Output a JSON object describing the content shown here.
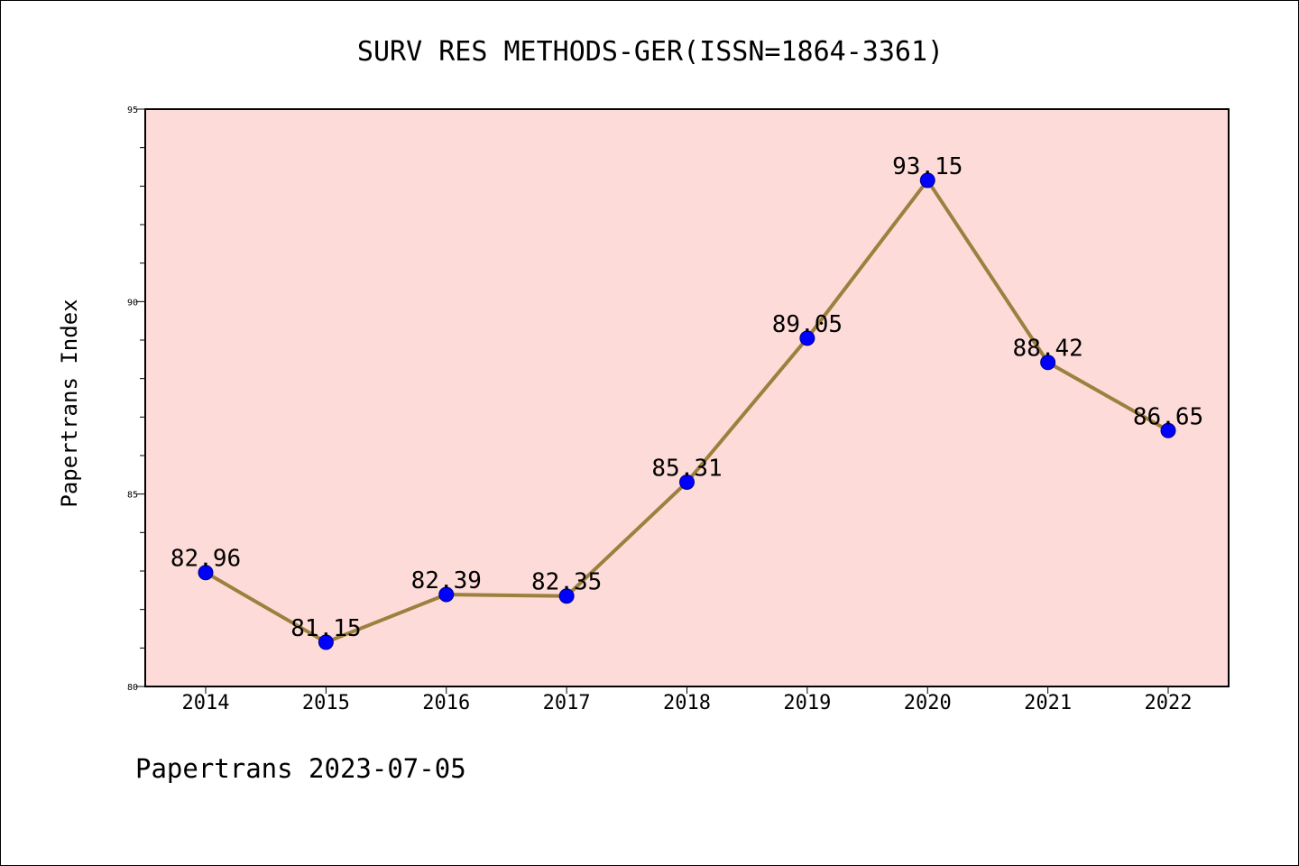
{
  "footer": "Papertrans 2023-07-05",
  "chart_data": {
    "type": "line",
    "title": "SURV RES METHODS-GER(ISSN=1864-3361)",
    "xlabel": "",
    "ylabel": "Papertrans Index",
    "categories": [
      "2014",
      "2015",
      "2016",
      "2017",
      "2018",
      "2019",
      "2020",
      "2021",
      "2022"
    ],
    "series": [
      {
        "values": [
          82.96,
          81.15,
          82.39,
          82.35,
          85.31,
          89.05,
          93.15,
          88.42,
          86.65
        ]
      }
    ],
    "data_labels": [
      "82.96",
      "81.15",
      "82.39",
      "82.35",
      "85.31",
      "89.05",
      "93.15",
      "88.42",
      "86.65"
    ],
    "ylim": [
      80,
      95
    ],
    "yticks": [
      80,
      85,
      90,
      95
    ],
    "yminor_step": 1,
    "grid": false,
    "legend": "none",
    "colors": {
      "plot_background": "#fddbd8",
      "line": "#9b803e",
      "marker": "#0000ff"
    }
  }
}
